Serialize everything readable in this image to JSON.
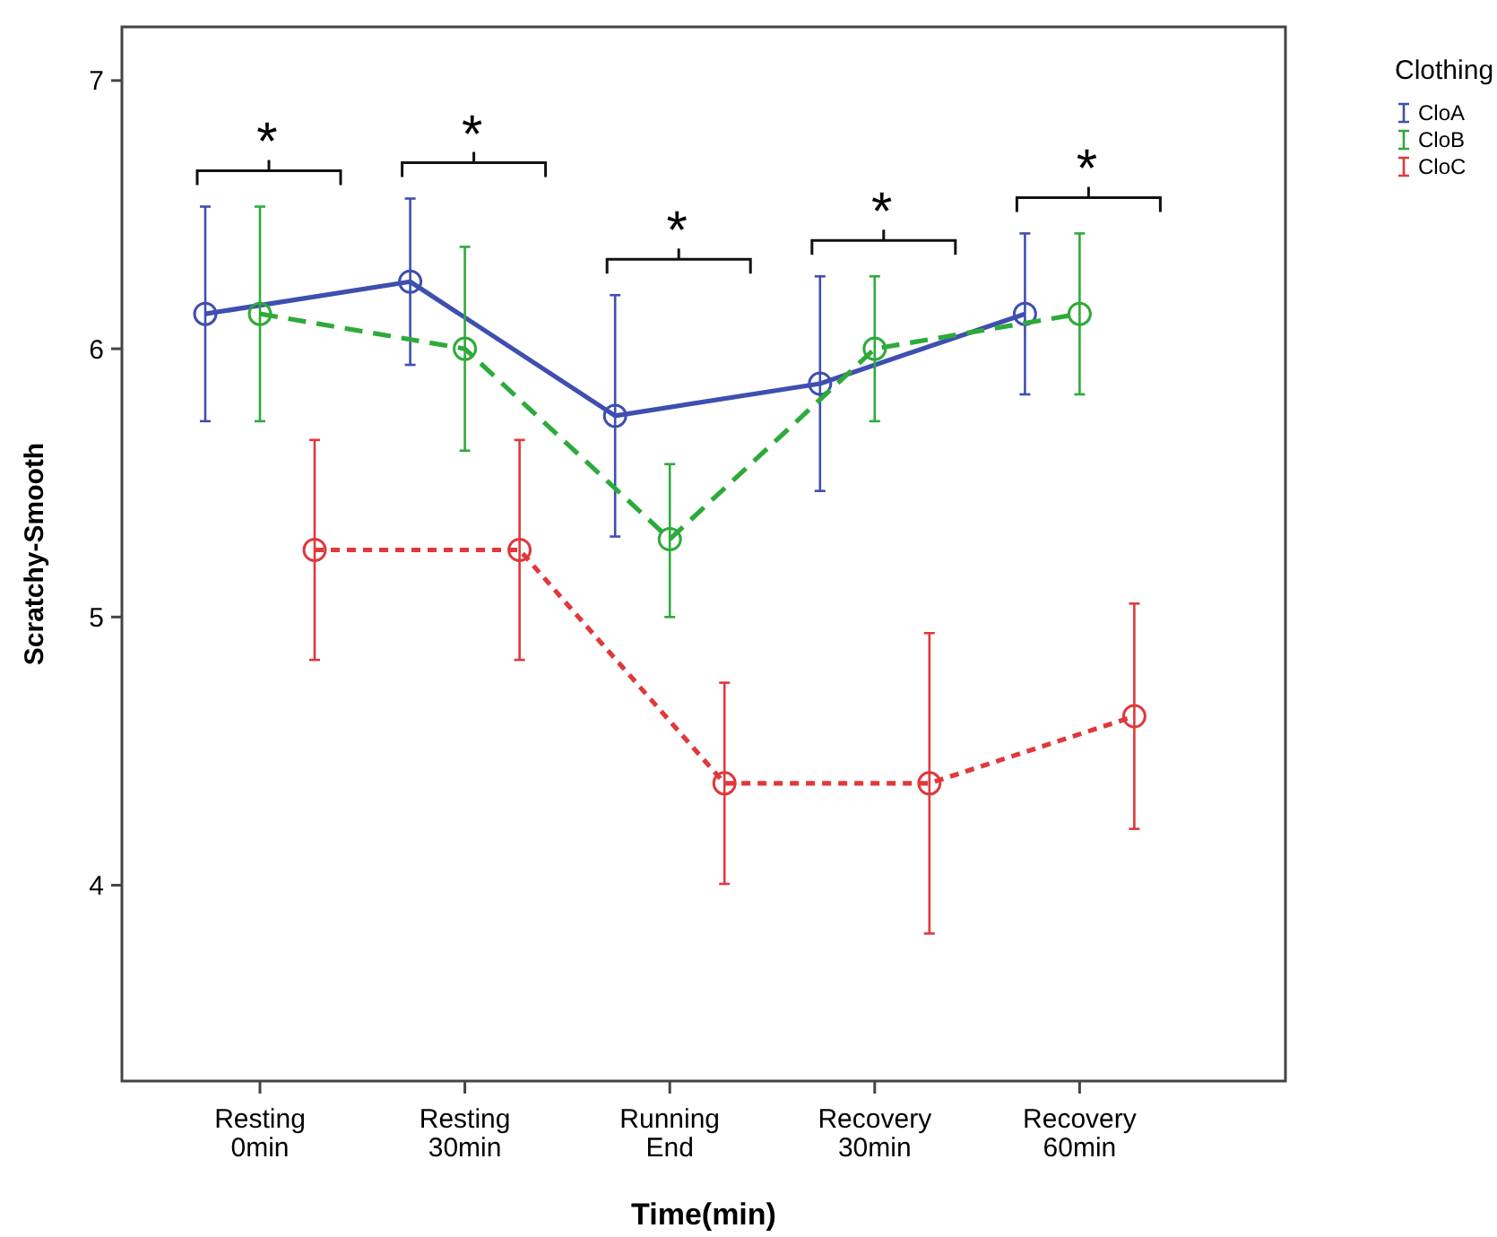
{
  "chart_data": {
    "type": "line",
    "xlabel": "Time(min)",
    "ylabel": "Scratchy-Smooth",
    "legend_title": "Clothing",
    "legend": "right",
    "marker": "circle",
    "grid": false,
    "categories": [
      "Resting 0min",
      "Resting 30min",
      "Running End",
      "Recovery 30min",
      "Recovery 60min"
    ],
    "ylim": [
      3.27,
      7.2
    ],
    "yticks": [
      4,
      5,
      6,
      7
    ],
    "series": [
      {
        "name": "CloA",
        "color": "#3f4fb0",
        "line_style": "solid",
        "values": [
          6.13,
          6.25,
          5.75,
          5.87,
          6.13
        ],
        "errors": [
          0.4,
          0.31,
          0.45,
          0.4,
          0.3
        ]
      },
      {
        "name": "CloB",
        "color": "#2eaa3a",
        "line_style": "dashed",
        "values": [
          6.13,
          6.0,
          5.29,
          6.0,
          6.13
        ],
        "errors": [
          0.4,
          0.38,
          [
            5.0,
            5.57
          ],
          0.27,
          0.3
        ]
      },
      {
        "name": "CloC",
        "color": "#e0383c",
        "line_style": "dotted",
        "values": [
          5.25,
          5.25,
          4.38,
          4.38,
          4.63
        ],
        "errors": [
          0.41,
          0.41,
          0.375,
          0.56,
          0.42
        ]
      }
    ],
    "annotations": [
      "*",
      "*",
      "*",
      "*",
      "*"
    ]
  }
}
